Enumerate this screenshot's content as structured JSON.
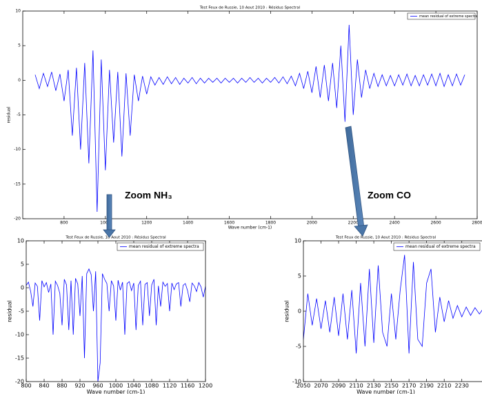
{
  "chart_data": [
    {
      "type": "line",
      "title": "Test Feux de Russie, 10 Aout 2010 : Résidus Spectral",
      "xlabel": "Wave number (cm-1)",
      "ylabel": "residual",
      "xlim": [
        600,
        2800
      ],
      "xticks": [
        800,
        1000,
        1200,
        1400,
        1600,
        1800,
        2000,
        2200,
        2400,
        2600,
        2800
      ],
      "ylim": [
        -20,
        10
      ],
      "yticks": [
        -20,
        -15,
        -10,
        -5,
        0,
        5,
        10
      ],
      "legend": "upper right",
      "x": [
        660,
        680,
        700,
        720,
        740,
        760,
        780,
        800,
        820,
        840,
        860,
        880,
        900,
        920,
        940,
        960,
        980,
        1000,
        1020,
        1040,
        1060,
        1080,
        1100,
        1120,
        1140,
        1160,
        1180,
        1200,
        1220,
        1240,
        1260,
        1280,
        1300,
        1320,
        1340,
        1360,
        1380,
        1400,
        1420,
        1440,
        1460,
        1480,
        1500,
        1520,
        1540,
        1560,
        1580,
        1600,
        1620,
        1640,
        1660,
        1680,
        1700,
        1720,
        1740,
        1760,
        1780,
        1800,
        1820,
        1840,
        1860,
        1880,
        1900,
        1920,
        1940,
        1960,
        1980,
        2000,
        2020,
        2040,
        2060,
        2080,
        2100,
        2120,
        2140,
        2160,
        2180,
        2200,
        2220,
        2240,
        2260,
        2280,
        2300,
        2320,
        2340,
        2360,
        2380,
        2400,
        2420,
        2440,
        2460,
        2480,
        2500,
        2520,
        2540,
        2560,
        2580,
        2600,
        2620,
        2640,
        2660,
        2680,
        2700,
        2720,
        2740
      ],
      "series": [
        {
          "name": "mean residual of extreme spectra",
          "color": "#0000ff",
          "values": [
            0.8,
            -1.2,
            1.0,
            -0.9,
            1.2,
            -1.5,
            0.9,
            -3,
            1.5,
            -8,
            1.8,
            -10,
            2.5,
            -12,
            4.3,
            -19,
            3,
            -13,
            1.5,
            -9,
            1.2,
            -11,
            1.0,
            -8,
            0.8,
            -3,
            0.6,
            -2,
            0.5,
            -0.7,
            0.4,
            -0.6,
            0.5,
            -0.5,
            0.4,
            -0.6,
            0.3,
            -0.4,
            0.4,
            -0.5,
            0.3,
            -0.4,
            0.3,
            -0.3,
            0.3,
            -0.4,
            0.3,
            -0.3,
            0.3,
            -0.4,
            0.3,
            -0.3,
            0.4,
            -0.3,
            0.3,
            -0.4,
            0.3,
            -0.3,
            0.4,
            -0.4,
            0.5,
            -0.5,
            0.6,
            -0.8,
            1.0,
            -1.2,
            1.3,
            -1.8,
            2.0,
            -2.5,
            2.2,
            -3,
            2.5,
            -4,
            5,
            -6,
            8,
            -5,
            3,
            -2.5,
            1.5,
            -1.2,
            1.0,
            -0.9,
            0.8,
            -0.8,
            0.7,
            -0.8,
            0.8,
            -0.7,
            0.9,
            -0.8,
            0.7,
            -0.8,
            0.8,
            -0.7,
            0.9,
            -0.8,
            1.0,
            -0.9,
            0.8,
            -0.8,
            0.9,
            -0.7,
            0.8
          ]
        }
      ]
    },
    {
      "type": "line",
      "title": "Test Feux de Russie, 10 Aout 2010 : Résidus Spectral",
      "xlabel": "Wave number (cm-1)",
      "ylabel": "residual",
      "xlim": [
        800,
        1200
      ],
      "xticks": [
        800,
        840,
        880,
        920,
        960,
        1000,
        1040,
        1080,
        1120,
        1160,
        1200
      ],
      "ylim": [
        -20,
        10
      ],
      "yticks": [
        -20,
        -15,
        -10,
        -5,
        0,
        5,
        10
      ],
      "legend": "upper right",
      "x": [
        800,
        805,
        810,
        815,
        820,
        825,
        830,
        835,
        840,
        845,
        850,
        855,
        860,
        865,
        870,
        875,
        880,
        885,
        890,
        895,
        900,
        905,
        910,
        915,
        920,
        925,
        930,
        935,
        940,
        945,
        950,
        955,
        960,
        965,
        970,
        975,
        980,
        985,
        990,
        995,
        1000,
        1005,
        1010,
        1015,
        1020,
        1025,
        1030,
        1035,
        1040,
        1045,
        1050,
        1055,
        1060,
        1065,
        1070,
        1075,
        1080,
        1085,
        1090,
        1095,
        1100,
        1105,
        1110,
        1115,
        1120,
        1125,
        1130,
        1135,
        1140,
        1145,
        1150,
        1155,
        1160,
        1165,
        1170,
        1175,
        1180,
        1185,
        1190,
        1195,
        1200
      ],
      "series": [
        {
          "name": "mean residual of extreme spectra",
          "color": "#0000ff",
          "values": [
            0.5,
            1.2,
            -0.8,
            -4,
            1.0,
            0.3,
            -7,
            1.5,
            0.2,
            1.1,
            -1.0,
            0.8,
            -10,
            1.4,
            0.5,
            -1.2,
            -8,
            1.8,
            0.6,
            -9,
            1.5,
            -10,
            2.0,
            0.8,
            -6,
            2.5,
            -15,
            3,
            4,
            2.8,
            -5,
            3.5,
            -20,
            -16,
            3,
            1.8,
            0.9,
            -5,
            1.5,
            0.4,
            -7,
            1.6,
            -0.5,
            1.2,
            -10,
            0.9,
            1.3,
            -0.6,
            1.0,
            -9,
            0.5,
            1.4,
            -8,
            0.7,
            1.1,
            -6,
            0.6,
            1.8,
            -8,
            0.4,
            -4,
            1.2,
            0.3,
            0.9,
            -5,
            1.0,
            -0.4,
            0.8,
            1.1,
            -4,
            0.5,
            0.9,
            -0.6,
            -3,
            1.0,
            0.4,
            -0.8,
            1.1,
            0.2,
            -2,
            0.3
          ]
        }
      ]
    },
    {
      "type": "line",
      "title": "Test Feux de Russie, 10 Aout 2010 : Résidus Spectral",
      "xlabel": "Wave number (cm-1)",
      "ylabel": "residual",
      "xlim": [
        2050,
        2260
      ],
      "xticks": [
        2050,
        2070,
        2090,
        2110,
        2130,
        2150,
        2170,
        2190,
        2210,
        2230
      ],
      "ylim": [
        -10,
        10
      ],
      "yticks": [
        -10,
        -5,
        0,
        5,
        10
      ],
      "legend": "upper right",
      "x": [
        2050,
        2055,
        2060,
        2065,
        2070,
        2075,
        2080,
        2085,
        2090,
        2095,
        2100,
        2105,
        2110,
        2115,
        2120,
        2125,
        2130,
        2135,
        2140,
        2145,
        2150,
        2155,
        2160,
        2165,
        2170,
        2175,
        2180,
        2185,
        2190,
        2195,
        2200,
        2205,
        2210,
        2215,
        2220,
        2225,
        2230,
        2235,
        2240,
        2245,
        2250,
        2255,
        2260
      ],
      "series": [
        {
          "name": "mean residual of extreme spectra",
          "color": "#0000ff",
          "values": [
            -4,
            2.5,
            -2,
            1.8,
            -2.5,
            1.5,
            -3,
            2,
            -3.5,
            2.5,
            -4,
            3,
            -6,
            4,
            -5,
            6,
            -4.5,
            6.5,
            -3,
            -5,
            2.5,
            -4,
            3,
            8,
            -6,
            7,
            -4,
            -5,
            4,
            6,
            -3,
            2,
            -1.5,
            1.5,
            -1,
            0.8,
            -0.8,
            0.6,
            -0.6,
            0.5,
            -0.4,
            0.5,
            -0.3
          ]
        }
      ]
    }
  ],
  "annotations": [
    "Zoom NH₃",
    "Zoom CO"
  ]
}
